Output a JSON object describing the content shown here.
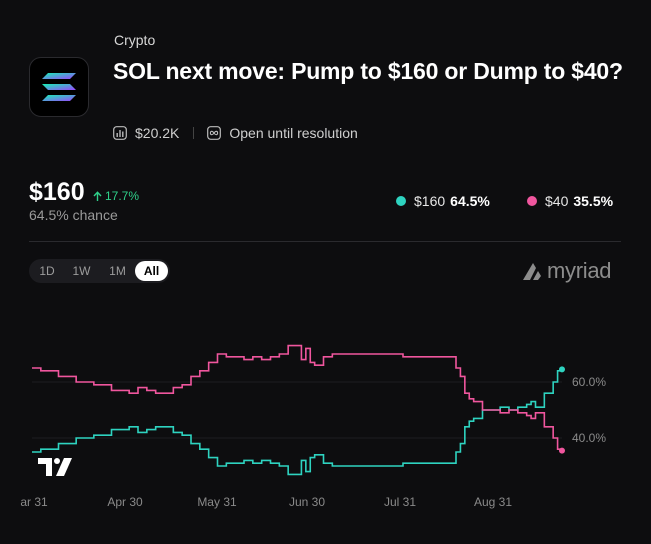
{
  "market": {
    "category": "Crypto",
    "title": "SOL next move: Pump to $160 or Dump to $40?",
    "volume": "$20.2K",
    "status": "Open until resolution"
  },
  "summary": {
    "price": "$160",
    "change": "17.7%",
    "chance": "64.5% chance"
  },
  "legend": [
    {
      "label": "$160",
      "value": "64.5%",
      "color": "#2ed3c0"
    },
    {
      "label": "$40",
      "value": "35.5%",
      "color": "#f0569e"
    }
  ],
  "ranges": [
    "1D",
    "1W",
    "1M",
    "All"
  ],
  "active_range": "All",
  "brand": "myriad",
  "chart_data": {
    "type": "line",
    "x_ticks": [
      "ar 31",
      "Apr 30",
      "May 31",
      "Jun 30",
      "Jul 31",
      "Aug 31"
    ],
    "y_ticks": [
      "60.0%",
      "40.0%"
    ],
    "ylim": [
      25,
      75
    ],
    "series": [
      {
        "name": "$160",
        "color": "#2ed3c0",
        "values": [
          [
            0,
            35
          ],
          [
            1,
            36
          ],
          [
            2,
            36
          ],
          [
            3,
            38
          ],
          [
            4,
            38
          ],
          [
            5,
            40
          ],
          [
            6,
            40
          ],
          [
            7,
            41
          ],
          [
            8,
            41
          ],
          [
            9,
            43
          ],
          [
            10,
            43
          ],
          [
            11,
            44
          ],
          [
            12,
            42
          ],
          [
            13,
            43
          ],
          [
            14,
            44
          ],
          [
            15,
            44
          ],
          [
            16,
            42
          ],
          [
            17,
            41
          ],
          [
            18,
            38
          ],
          [
            19,
            36
          ],
          [
            20,
            33
          ],
          [
            21,
            30
          ],
          [
            22,
            31
          ],
          [
            23,
            31
          ],
          [
            24,
            32
          ],
          [
            25,
            31
          ],
          [
            26,
            32
          ],
          [
            27,
            31
          ],
          [
            28,
            30
          ],
          [
            29,
            27
          ],
          [
            30,
            27
          ],
          [
            30.5,
            32
          ],
          [
            31,
            28
          ],
          [
            31.5,
            33
          ],
          [
            32,
            34
          ],
          [
            33,
            31
          ],
          [
            34,
            30
          ],
          [
            35,
            30
          ],
          [
            36,
            30
          ],
          [
            37,
            30
          ],
          [
            38,
            30
          ],
          [
            39,
            30
          ],
          [
            40,
            30
          ],
          [
            41,
            30
          ],
          [
            42,
            31
          ],
          [
            43,
            31
          ],
          [
            44,
            31
          ],
          [
            45,
            31
          ],
          [
            46,
            31
          ],
          [
            47,
            31
          ],
          [
            48,
            35
          ],
          [
            48.5,
            38
          ],
          [
            49,
            44
          ],
          [
            49.5,
            46
          ],
          [
            50,
            47
          ],
          [
            51,
            50
          ],
          [
            52,
            50
          ],
          [
            53,
            51
          ],
          [
            54,
            50
          ],
          [
            55,
            51
          ],
          [
            56,
            52
          ],
          [
            56.5,
            53
          ],
          [
            57,
            51
          ],
          [
            58,
            56
          ],
          [
            59,
            60
          ],
          [
            59.5,
            64
          ],
          [
            60,
            64.5
          ]
        ]
      },
      {
        "name": "$40",
        "color": "#f0569e",
        "values": [
          [
            0,
            65
          ],
          [
            1,
            64
          ],
          [
            2,
            64
          ],
          [
            3,
            62
          ],
          [
            4,
            62
          ],
          [
            5,
            60
          ],
          [
            6,
            60
          ],
          [
            7,
            59
          ],
          [
            8,
            59
          ],
          [
            9,
            57
          ],
          [
            10,
            57
          ],
          [
            11,
            56
          ],
          [
            12,
            58
          ],
          [
            13,
            57
          ],
          [
            14,
            56
          ],
          [
            15,
            56
          ],
          [
            16,
            58
          ],
          [
            17,
            59
          ],
          [
            18,
            62
          ],
          [
            19,
            64
          ],
          [
            20,
            67
          ],
          [
            21,
            70
          ],
          [
            22,
            69
          ],
          [
            23,
            69
          ],
          [
            24,
            68
          ],
          [
            25,
            69
          ],
          [
            26,
            68
          ],
          [
            27,
            69
          ],
          [
            28,
            70
          ],
          [
            29,
            73
          ],
          [
            30,
            73
          ],
          [
            30.5,
            68
          ],
          [
            31,
            72
          ],
          [
            31.5,
            67
          ],
          [
            32,
            66
          ],
          [
            33,
            69
          ],
          [
            34,
            70
          ],
          [
            35,
            70
          ],
          [
            36,
            70
          ],
          [
            37,
            70
          ],
          [
            38,
            70
          ],
          [
            39,
            70
          ],
          [
            40,
            70
          ],
          [
            41,
            70
          ],
          [
            42,
            69
          ],
          [
            43,
            69
          ],
          [
            44,
            69
          ],
          [
            45,
            69
          ],
          [
            46,
            69
          ],
          [
            47,
            69
          ],
          [
            48,
            65
          ],
          [
            48.5,
            62
          ],
          [
            49,
            56
          ],
          [
            49.5,
            54
          ],
          [
            50,
            53
          ],
          [
            51,
            50
          ],
          [
            52,
            50
          ],
          [
            53,
            49
          ],
          [
            54,
            50
          ],
          [
            55,
            49
          ],
          [
            56,
            48
          ],
          [
            56.5,
            47
          ],
          [
            57,
            49
          ],
          [
            58,
            44
          ],
          [
            59,
            40
          ],
          [
            59.5,
            36
          ],
          [
            60,
            35.5
          ]
        ]
      }
    ]
  }
}
